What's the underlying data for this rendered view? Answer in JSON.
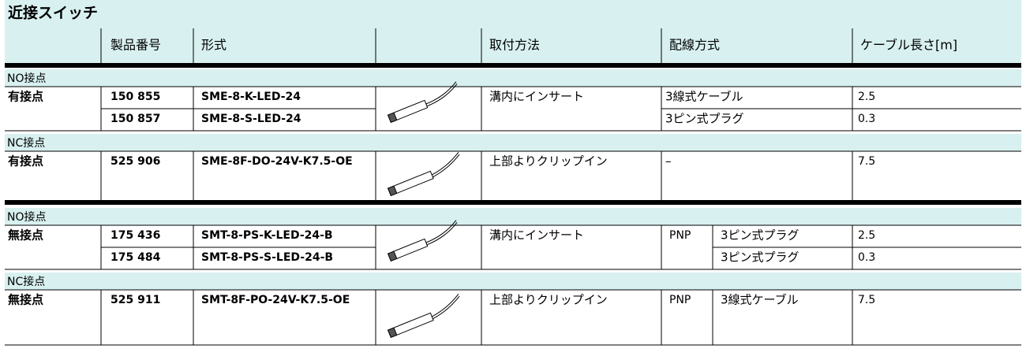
{
  "title": "近接スイッチ",
  "header": [
    "製品番号",
    "形式",
    "取付方法",
    "配線方式",
    "ケーブル長さ[m]"
  ],
  "sections": [
    {
      "label": "NO接点",
      "contact": "有接点",
      "mounting": "溝内にインサート",
      "rows": [
        {
          "part": "150 855",
          "type": "SME-8-K-LED-24",
          "wiring": "3線式ケーブル",
          "length": "2.5"
        },
        {
          "part": "150 857",
          "type": "SME-8-S-LED-24",
          "wiring": "3ピン式プラグ",
          "length": "0.3"
        }
      ]
    },
    {
      "label": "NC接点",
      "contact": "有接点",
      "mounting": "上部よりクリップイン",
      "rows": [
        {
          "part": "525 906",
          "type": "SME-8F-DO-24V-K7.5-OE",
          "wiring": "–",
          "length": "7.5"
        }
      ]
    },
    {
      "label": "NO接点",
      "contact": "無接点",
      "mounting": "溝内にインサート",
      "output": "PNP",
      "rows": [
        {
          "part": "175 436",
          "type": "SMT-8-PS-K-LED-24-B",
          "wiring": "3ピン式プラグ",
          "length": "2.5"
        },
        {
          "part": "175 484",
          "type": "SMT-8-PS-S-LED-24-B",
          "wiring": "3ピン式プラグ",
          "length": "0.3"
        }
      ]
    },
    {
      "label": "NC接点",
      "contact": "無接点",
      "mounting": "上部よりクリップイン",
      "output": "PNP",
      "rows": [
        {
          "part": "525 911",
          "type": "SMT-8F-PO-24V-K7.5-OE",
          "wiring": "3線式ケーブル",
          "length": "7.5"
        }
      ]
    }
  ]
}
